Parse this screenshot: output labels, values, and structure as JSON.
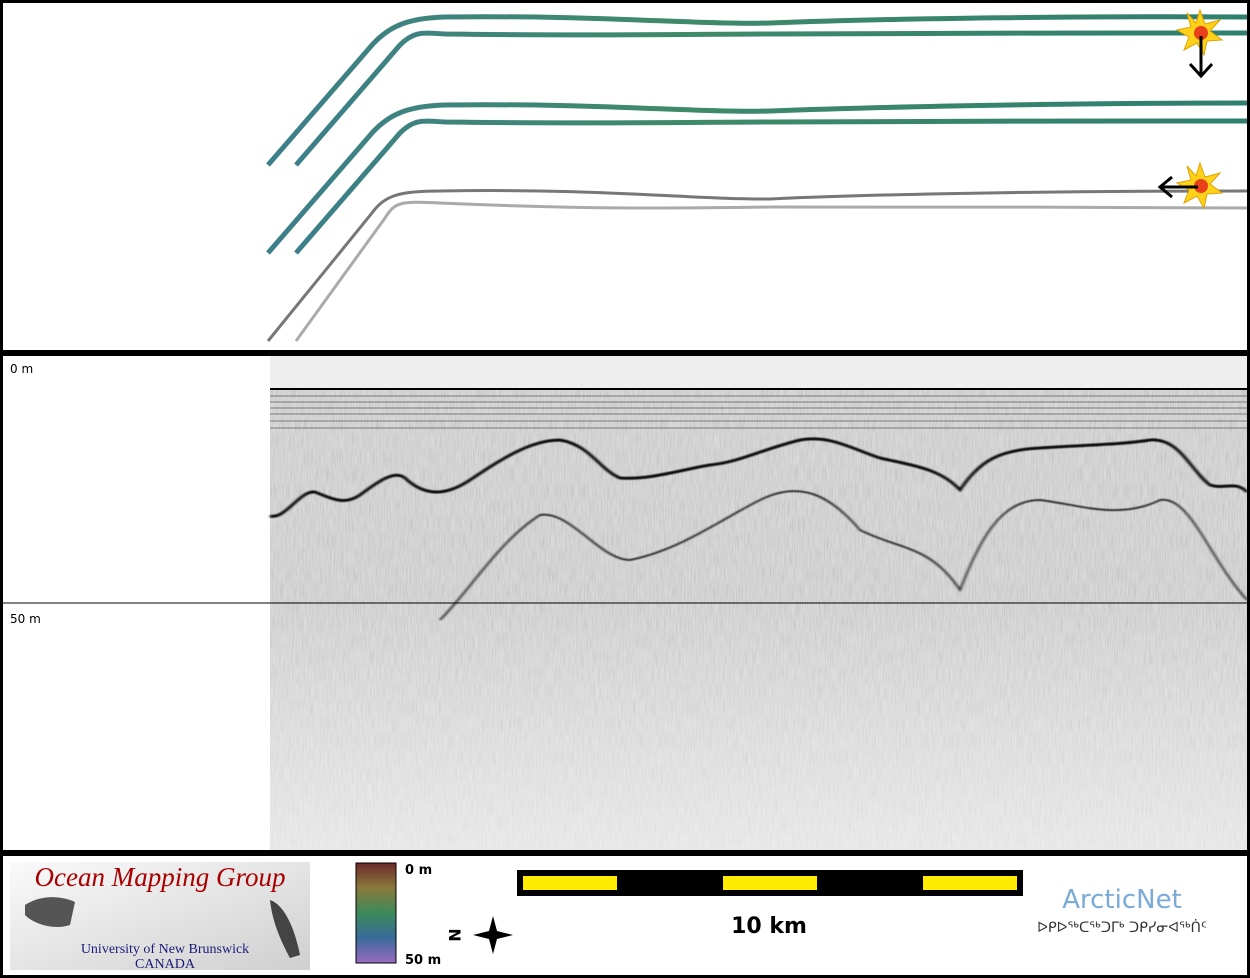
{
  "profile": {
    "depth_labels": [
      "0 m",
      "50 m"
    ]
  },
  "footer": {
    "logo": {
      "title": "Ocean Mapping Group",
      "university": "University of New Brunswick",
      "country": "CANADA"
    },
    "color_scale": {
      "top": "0 m",
      "bottom": "50 m"
    },
    "compass": "N",
    "scale_bar": "10 km",
    "partner": {
      "name": "ArcticNet",
      "syllabics": "ᐅᑭᐅᖅᑕᖅᑐᒥᒃ ᑐᑭᓯᓂᐊᖅᑏᑦ"
    }
  }
}
